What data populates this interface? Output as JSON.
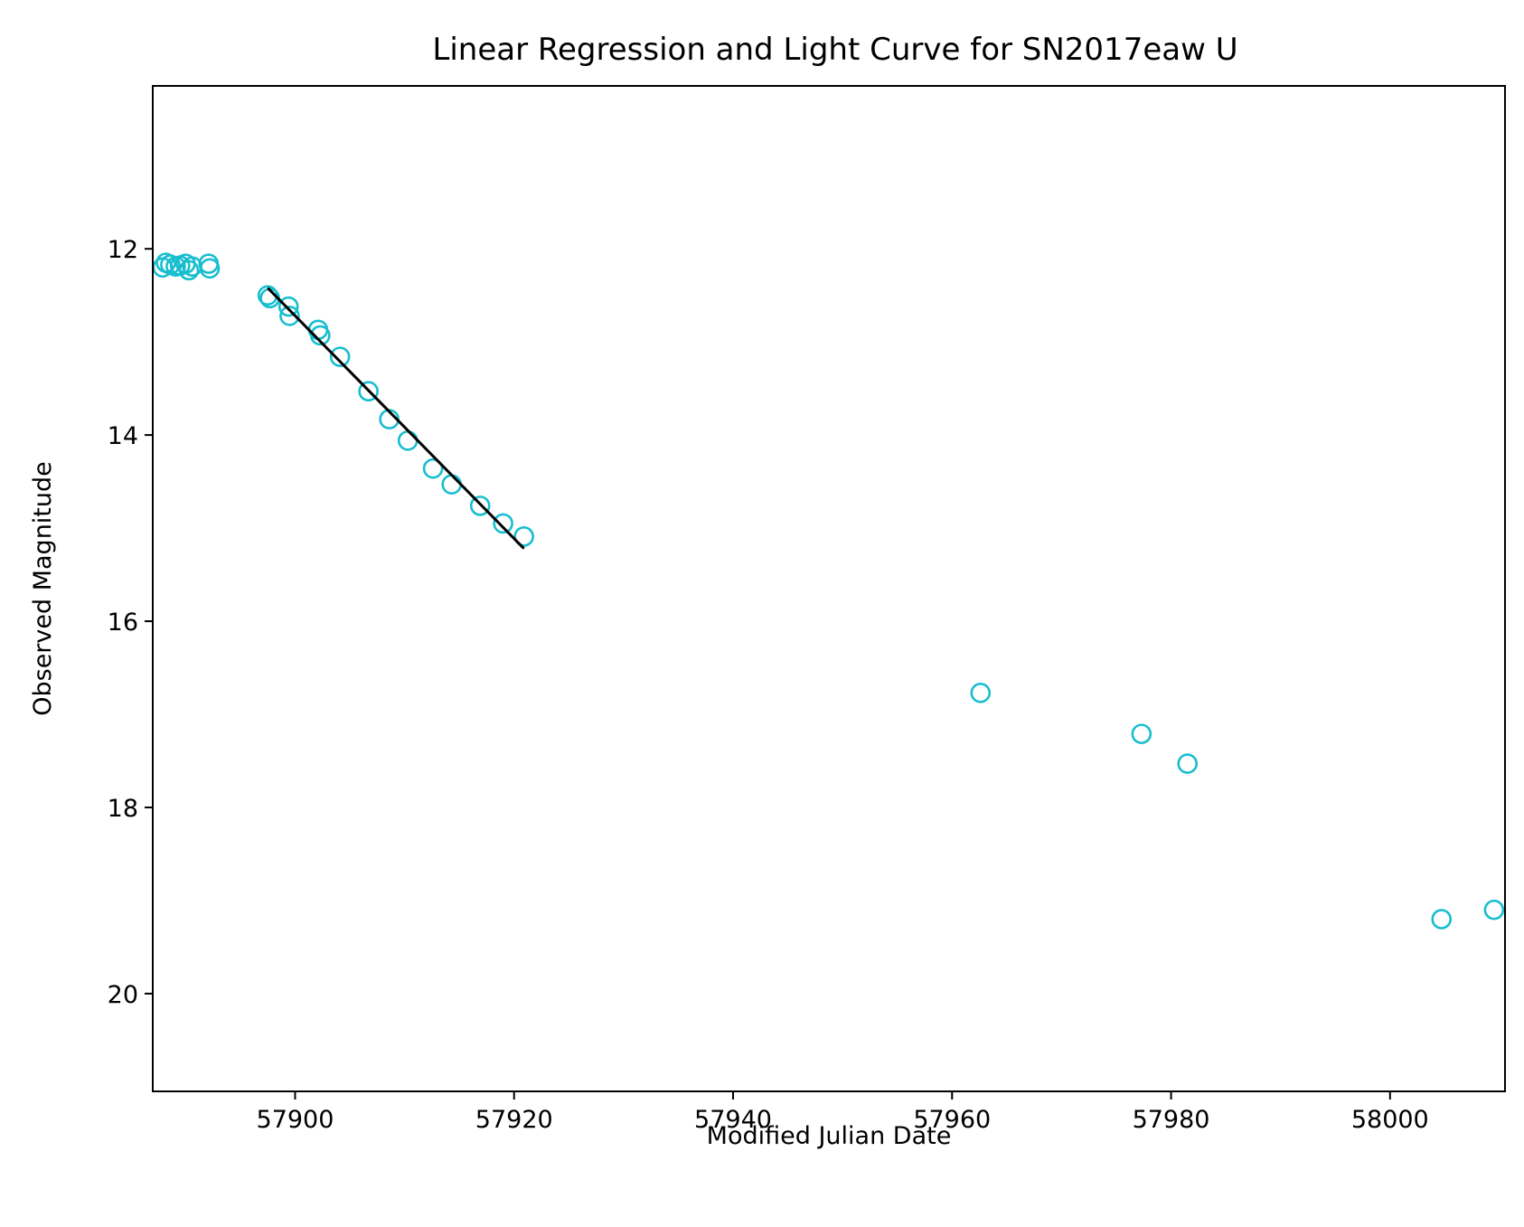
{
  "chart_data": {
    "type": "scatter",
    "title": "Linear Regression and Light Curve for SN2017eaw U",
    "xlabel": "Modified Julian Date",
    "ylabel": "Observed Magnitude",
    "xlim": [
      57887,
      58010.5
    ],
    "ylim": [
      21.05,
      10.25
    ],
    "y_inverted": true,
    "grid": false,
    "xticks": [
      57900,
      57920,
      57940,
      57960,
      57980,
      58000
    ],
    "xtick_labels": [
      "57900",
      "57920",
      "57940",
      "57960",
      "57980",
      "58000"
    ],
    "yticks": [
      12,
      14,
      16,
      18,
      20
    ],
    "ytick_labels": [
      "12",
      "14",
      "16",
      "18",
      "20"
    ],
    "marker_color": "#17becf",
    "line_color": "#000000",
    "points": [
      {
        "x": 57887.9,
        "y": 12.2
      },
      {
        "x": 57888.2,
        "y": 12.15
      },
      {
        "x": 57888.6,
        "y": 12.17
      },
      {
        "x": 57889.1,
        "y": 12.19
      },
      {
        "x": 57889.5,
        "y": 12.18
      },
      {
        "x": 57890.0,
        "y": 12.16
      },
      {
        "x": 57890.3,
        "y": 12.23
      },
      {
        "x": 57890.6,
        "y": 12.19
      },
      {
        "x": 57892.1,
        "y": 12.16
      },
      {
        "x": 57892.2,
        "y": 12.21
      },
      {
        "x": 57897.5,
        "y": 12.5
      },
      {
        "x": 57897.7,
        "y": 12.53
      },
      {
        "x": 57899.4,
        "y": 12.62
      },
      {
        "x": 57899.5,
        "y": 12.72
      },
      {
        "x": 57902.1,
        "y": 12.87
      },
      {
        "x": 57902.3,
        "y": 12.93
      },
      {
        "x": 57904.1,
        "y": 13.16
      },
      {
        "x": 57906.7,
        "y": 13.53
      },
      {
        "x": 57908.6,
        "y": 13.83
      },
      {
        "x": 57910.3,
        "y": 14.06
      },
      {
        "x": 57912.6,
        "y": 14.36
      },
      {
        "x": 57914.3,
        "y": 14.53
      },
      {
        "x": 57916.9,
        "y": 14.76
      },
      {
        "x": 57919.0,
        "y": 14.95
      },
      {
        "x": 57920.9,
        "y": 15.09
      },
      {
        "x": 57962.6,
        "y": 16.77
      },
      {
        "x": 57977.3,
        "y": 17.21
      },
      {
        "x": 57981.5,
        "y": 17.53
      },
      {
        "x": 58004.7,
        "y": 19.2
      },
      {
        "x": 58009.5,
        "y": 19.1
      }
    ],
    "regression_line": {
      "x": [
        57897.5,
        57920.9
      ],
      "y": [
        12.42,
        15.22
      ]
    }
  }
}
